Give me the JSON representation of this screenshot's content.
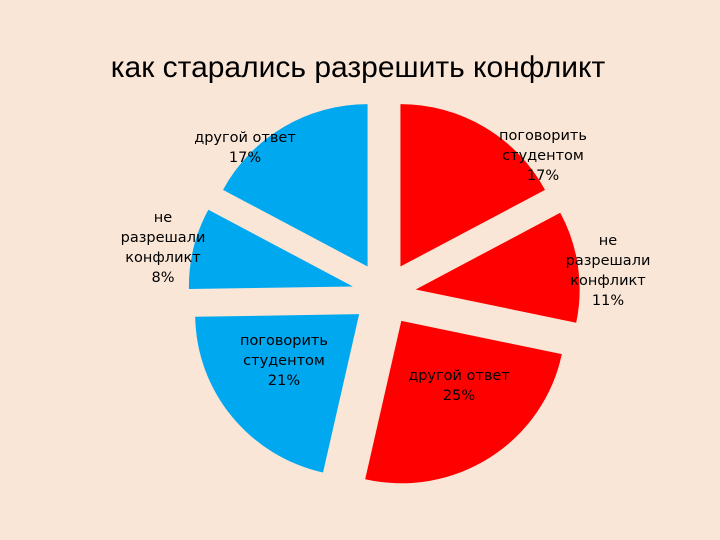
{
  "chart_data": {
    "type": "pie",
    "title": "как старались разрешить конфликт",
    "slices": [
      {
        "label": [
          "поговорить",
          "студентом",
          "17%"
        ],
        "value": 17,
        "color": "#ff0000"
      },
      {
        "label": [
          "не",
          "разрешали",
          "конфликт",
          "11%"
        ],
        "value": 11,
        "color": "#ff0000"
      },
      {
        "label": [
          "другой ответ",
          "25%"
        ],
        "value": 25,
        "color": "#ff0000"
      },
      {
        "label": [
          "поговорить",
          "студентом",
          "21%"
        ],
        "value": 21,
        "color": "#00a8f0"
      },
      {
        "label": [
          "не",
          "разрешали",
          "конфликт",
          "8%"
        ],
        "value": 8,
        "color": "#00a8f0"
      },
      {
        "label": [
          "другой ответ",
          "17%"
        ],
        "value": 17,
        "color": "#00a8f0"
      }
    ],
    "legend": "none"
  }
}
